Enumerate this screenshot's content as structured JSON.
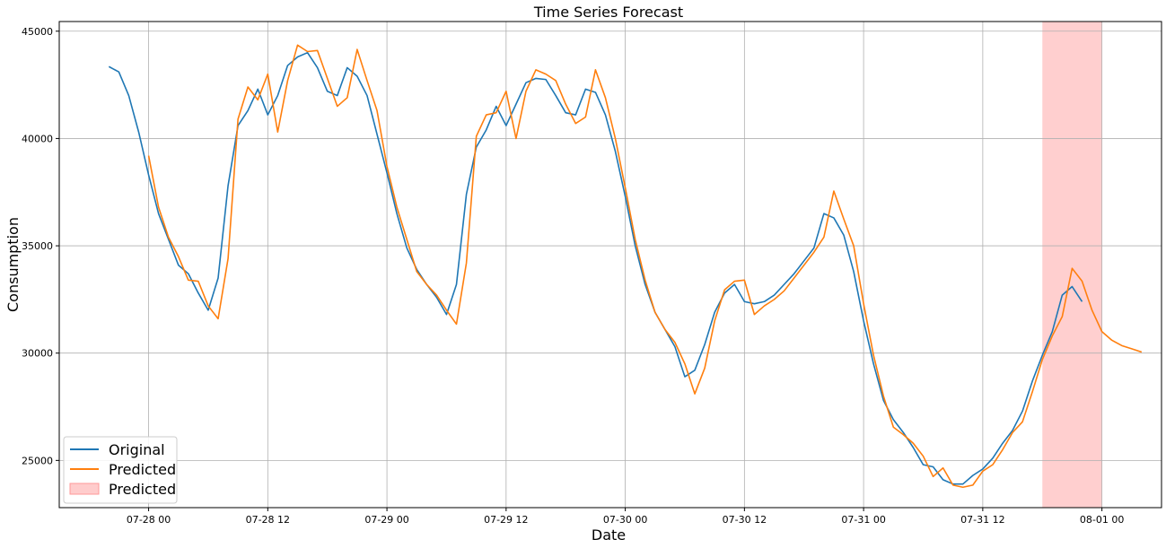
{
  "chart_data": {
    "type": "line",
    "title": "Time Series Forecast",
    "xlabel": "Date",
    "ylabel": "Consumption",
    "grid": true,
    "legend_position": "lower-left",
    "x_tick_labels": [
      "07-28 00",
      "07-28 12",
      "07-29 00",
      "07-29 12",
      "07-30 00",
      "07-30 12",
      "07-31 00",
      "07-31 12",
      "08-01 00"
    ],
    "x_ticks_hours": [
      0,
      12,
      24,
      36,
      48,
      60,
      72,
      84,
      96
    ],
    "xlim_hours": [
      -9,
      102
    ],
    "ylim": [
      22800,
      45450
    ],
    "y_ticks": [
      25000,
      30000,
      35000,
      40000,
      45000
    ],
    "forecast_region_hours": [
      90,
      96
    ],
    "colors": {
      "original": "#1f77b4",
      "predicted": "#ff7f0e",
      "forecast_region": "#ffcccc"
    },
    "series": [
      {
        "name": "Original",
        "x_start_hours": -4,
        "values": [
          43350,
          43100,
          42000,
          40300,
          38300,
          36500,
          35300,
          34100,
          33700,
          32800,
          32000,
          33500,
          37800,
          40600,
          41300,
          42300,
          41100,
          42000,
          43400,
          43800,
          44000,
          43300,
          42200,
          42000,
          43300,
          42900,
          42000,
          40200,
          38400,
          36500,
          34900,
          33900,
          33200,
          32600,
          31800,
          33200,
          37400,
          39600,
          40400,
          41500,
          40600,
          41600,
          42600,
          42800,
          42750,
          42000,
          41200,
          41100,
          42300,
          42150,
          41100,
          39400,
          37300,
          35000,
          33200,
          31900,
          31100,
          30300,
          28900,
          29200,
          30400,
          31900,
          32800,
          33200,
          32400,
          32300,
          32400,
          32700,
          33200,
          33700,
          34300,
          34900,
          36500,
          36300,
          35500,
          33800,
          31500,
          29500,
          27800,
          26900,
          26300,
          25600,
          24800,
          24700,
          24100,
          23900,
          23900,
          24300,
          24600,
          25100,
          25800,
          26400,
          27300,
          28700,
          29900,
          31000,
          32700,
          33100,
          32400
        ]
      },
      {
        "name": "Predicted",
        "x_start_hours": 0,
        "values": [
          39200,
          36800,
          35400,
          34500,
          33400,
          33350,
          32200,
          31600,
          34400,
          40900,
          42400,
          41800,
          43000,
          40300,
          42700,
          44350,
          44050,
          44100,
          42800,
          41500,
          41900,
          44150,
          42700,
          41300,
          38700,
          36800,
          35300,
          33800,
          33200,
          32700,
          32000,
          31350,
          34200,
          40100,
          41100,
          41200,
          42200,
          40000,
          42200,
          43200,
          43000,
          42700,
          41600,
          40700,
          41000,
          43200,
          41900,
          40000,
          37700,
          35300,
          33400,
          31900,
          31100,
          30500,
          29500,
          28100,
          29300,
          31500,
          32950,
          33350,
          33400,
          31800,
          32200,
          32500,
          32900,
          33500,
          34100,
          34700,
          35400,
          37550,
          36250,
          35000,
          32300,
          29900,
          28000,
          26550,
          26200,
          25800,
          25200,
          24250,
          24650,
          23850,
          23750,
          23850,
          24500,
          24800,
          25500,
          26300,
          26800,
          28200,
          29700,
          30800,
          31700,
          33950,
          33350,
          32000,
          31000,
          30600,
          30350,
          30200,
          30050
        ]
      },
      {
        "name": "Predicted",
        "type": "band"
      }
    ]
  }
}
